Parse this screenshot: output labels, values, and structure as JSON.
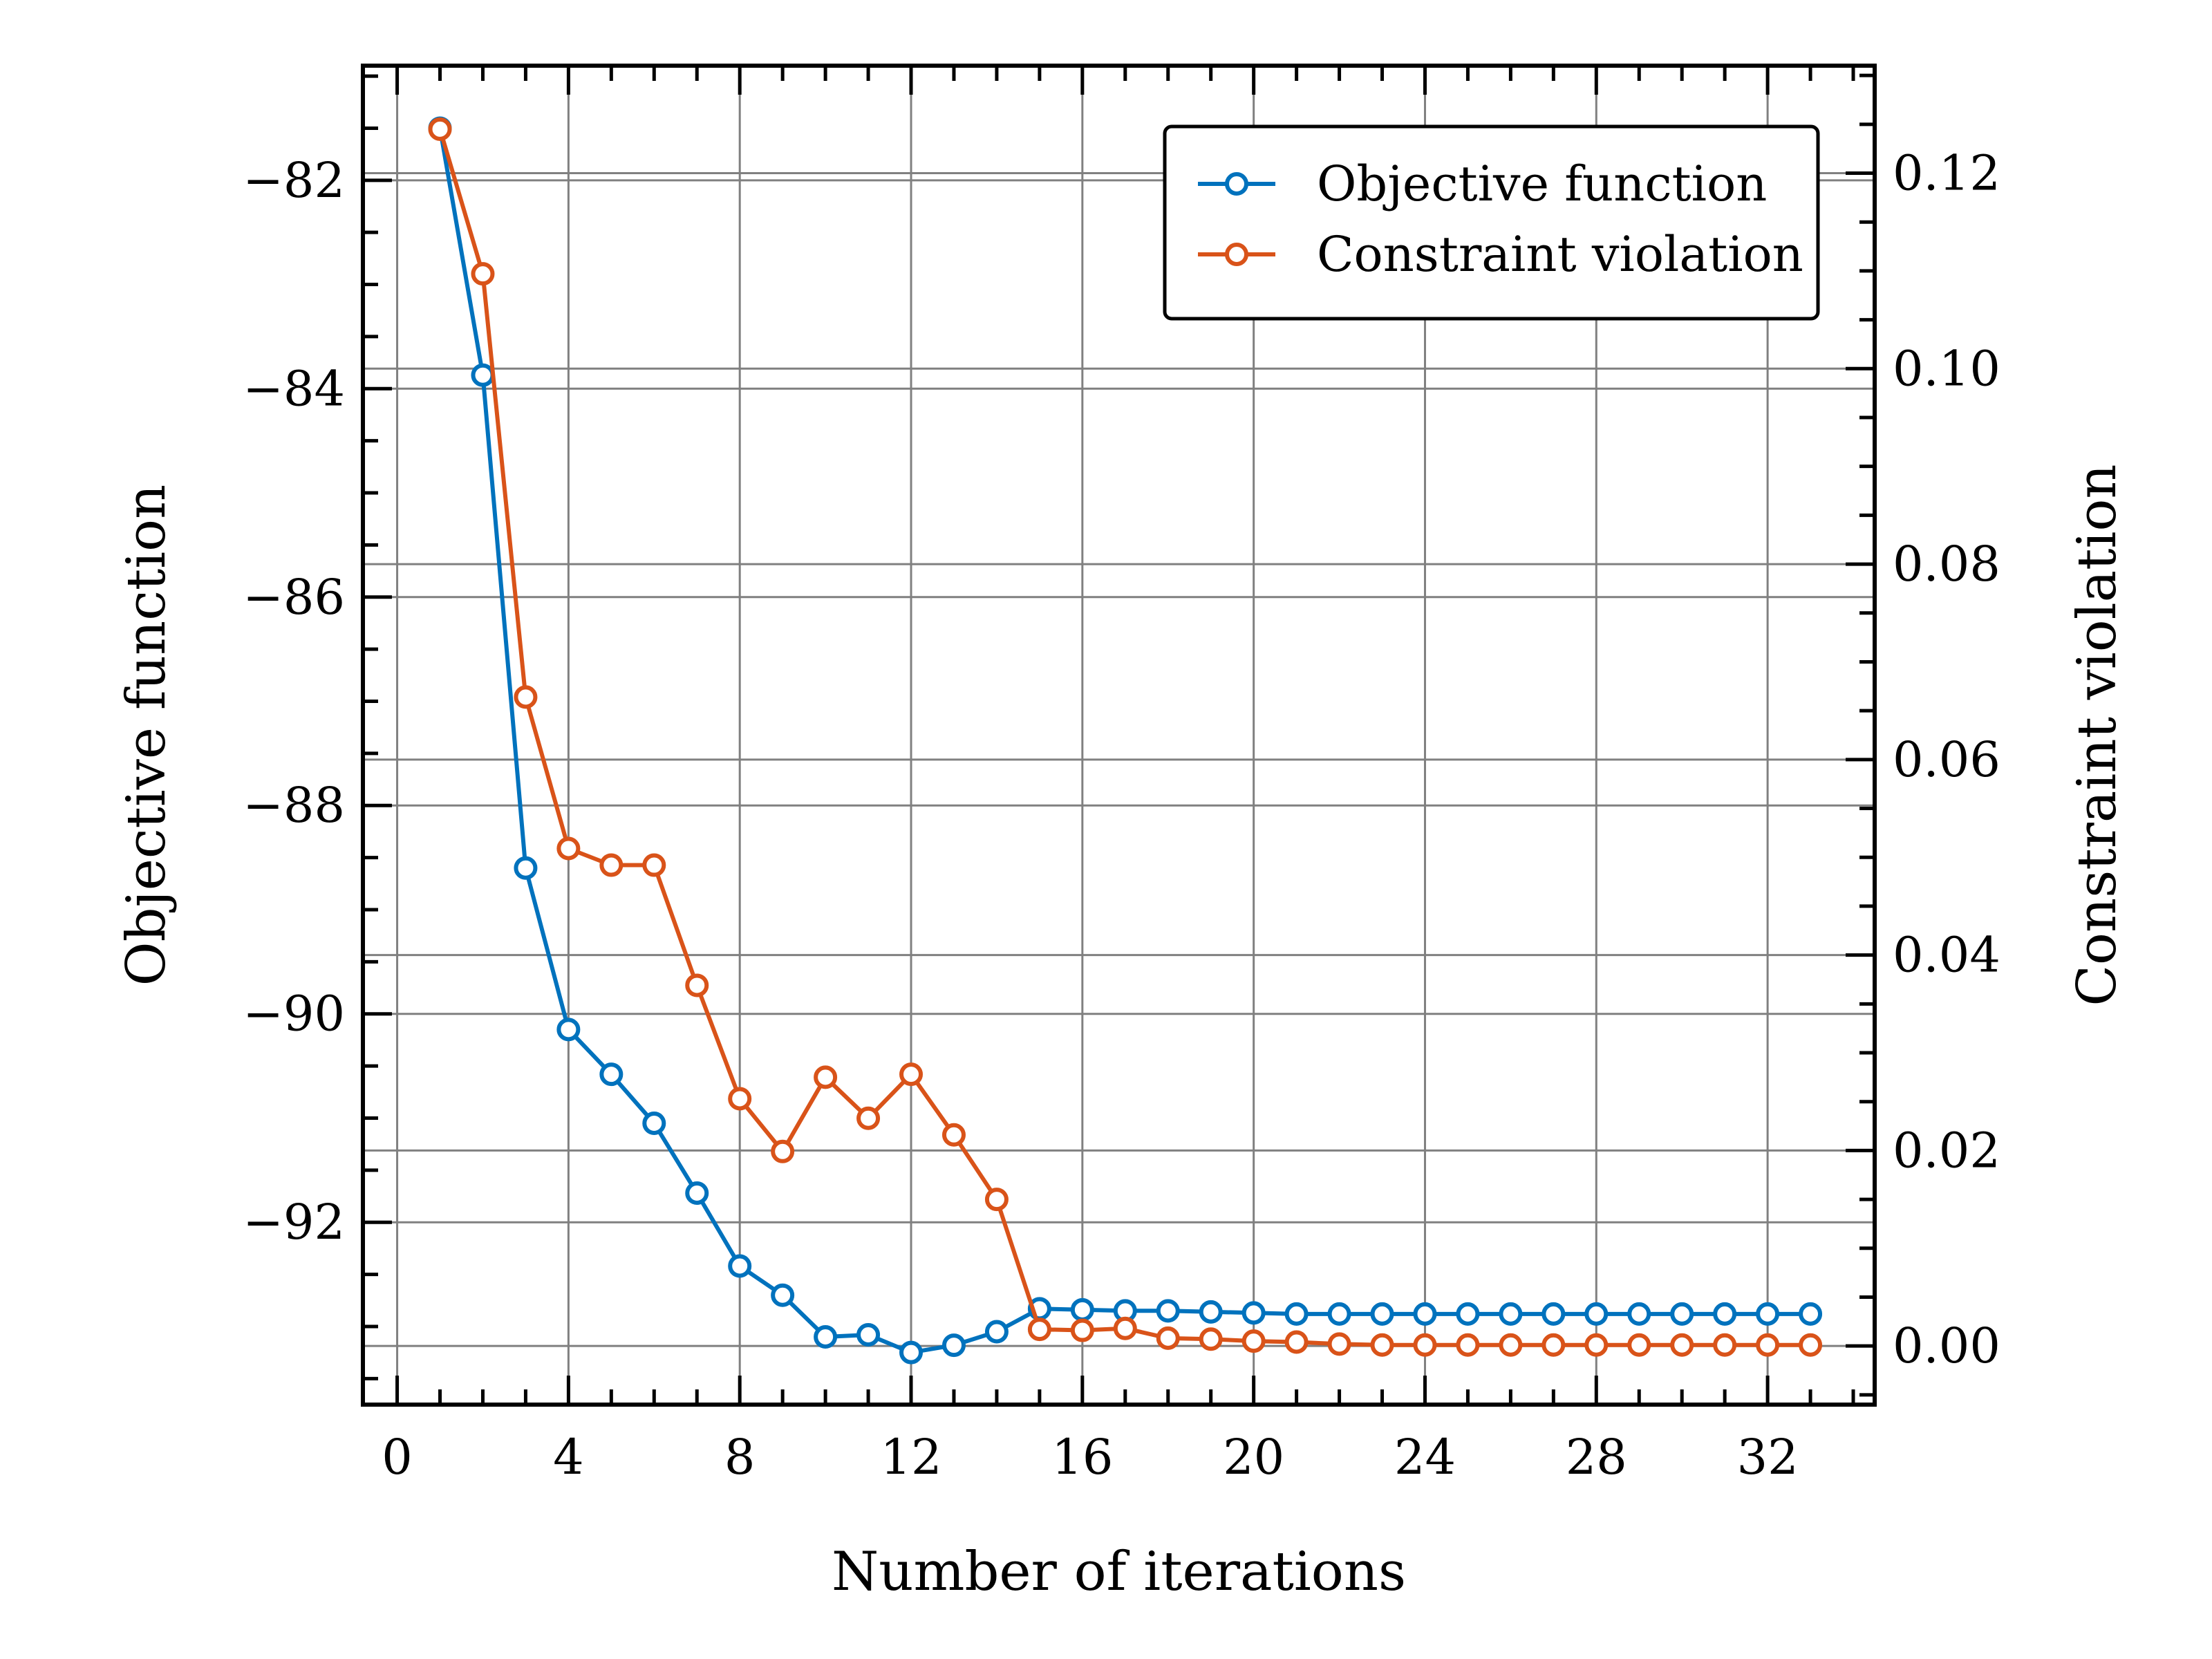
{
  "chart_data": {
    "type": "line",
    "xlabel": "Number of iterations",
    "ylabel_left": "Objective function",
    "ylabel_right": "Constraint violation",
    "xlim": [
      -0.8,
      34.5
    ],
    "ylim_left": [
      -93.75,
      -80.9
    ],
    "ylim_right": [
      -0.006,
      0.131
    ],
    "x_ticks": [
      0,
      4,
      8,
      12,
      16,
      20,
      24,
      28,
      32
    ],
    "y_left_ticks": [
      -82,
      -84,
      -86,
      -88,
      -90,
      -92
    ],
    "y_left_tick_labels": [
      "−82",
      "−84",
      "−86",
      "−88",
      "−90",
      "−92"
    ],
    "y_right_ticks": [
      0.0,
      0.02,
      0.04,
      0.06,
      0.08,
      0.1,
      0.12
    ],
    "y_right_tick_labels": [
      "0.00",
      "0.02",
      "0.04",
      "0.06",
      "0.08",
      "0.10",
      "0.12"
    ],
    "grid": true,
    "legend_position": "top-right",
    "x": [
      1,
      2,
      3,
      4,
      5,
      6,
      7,
      8,
      9,
      10,
      11,
      12,
      13,
      14,
      15,
      16,
      17,
      18,
      19,
      20,
      21,
      22,
      23,
      24,
      25,
      26,
      27,
      28,
      29,
      30,
      31,
      32,
      33
    ],
    "series": [
      {
        "name": "Objective function",
        "axis": "left",
        "color": "#0072BD",
        "values": [
          -81.5,
          -83.87,
          -88.6,
          -90.15,
          -90.58,
          -91.05,
          -91.72,
          -92.42,
          -92.7,
          -93.1,
          -93.08,
          -93.25,
          -93.18,
          -93.05,
          -92.83,
          -92.84,
          -92.85,
          -92.85,
          -92.86,
          -92.87,
          -92.88,
          -92.88,
          -92.88,
          -92.88,
          -92.88,
          -92.88,
          -92.88,
          -92.88,
          -92.88,
          -92.88,
          -92.88,
          -92.88,
          -92.88
        ]
      },
      {
        "name": "Constraint violation",
        "axis": "right",
        "color": "#D95319",
        "values": [
          0.1245,
          0.1097,
          0.0664,
          0.0509,
          0.0492,
          0.0492,
          0.0369,
          0.0253,
          0.0199,
          0.0275,
          0.0233,
          0.0278,
          0.0216,
          0.015,
          0.0017,
          0.0016,
          0.0018,
          0.0008,
          0.0007,
          0.0005,
          0.0004,
          0.0002,
          0.0001,
          0.0001,
          0.0001,
          0.0001,
          0.0001,
          0.0001,
          0.0001,
          0.0001,
          0.0001,
          0.0001,
          0.0001
        ]
      }
    ]
  }
}
